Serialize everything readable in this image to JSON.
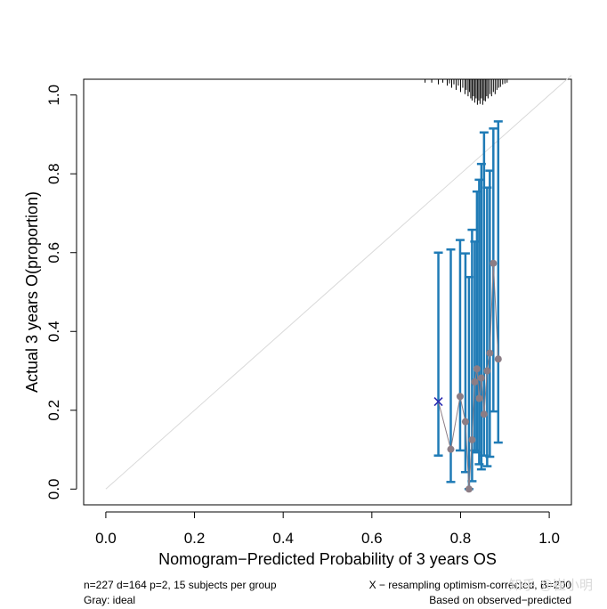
{
  "chart_data": {
    "type": "scatter",
    "title": "",
    "xlabel": "Nomogram−Predicted Probability of 3 years OS",
    "ylabel": "Actual 3 years O(proportion)",
    "xlim": [
      -0.05,
      1.05
    ],
    "ylim": [
      -0.04,
      1.04
    ],
    "x_ticks": [
      0.0,
      0.2,
      0.4,
      0.6,
      0.8,
      1.0
    ],
    "x_tick_labels": [
      "0.0",
      "0.2",
      "0.4",
      "0.6",
      "0.8",
      "1.0"
    ],
    "y_ticks": [
      0.0,
      0.2,
      0.4,
      0.6,
      0.8,
      1.0
    ],
    "y_tick_labels": [
      "0.0",
      "0.2",
      "0.4",
      "0.6",
      "0.8",
      "1.0"
    ],
    "ideal_line": {
      "name": "ideal",
      "color": "#d9d9d9",
      "from": [
        0,
        0
      ],
      "to": [
        1.05,
        1.05
      ]
    },
    "series": [
      {
        "name": "observed",
        "marker": "circle",
        "color": "#8c7d85",
        "line_color": "#8c7d85",
        "points": [
          {
            "x": 0.778,
            "y": 0.101,
            "lo": 0.018,
            "hi": 0.608
          },
          {
            "x": 0.799,
            "y": 0.235,
            "lo": 0.098,
            "hi": 0.632
          },
          {
            "x": 0.811,
            "y": 0.171,
            "lo": 0.043,
            "hi": 0.598
          },
          {
            "x": 0.819,
            "y": 0.0,
            "lo": 0.0,
            "hi": 0.538
          },
          {
            "x": 0.826,
            "y": 0.125,
            "lo": 0.02,
            "hi": 0.658
          },
          {
            "x": 0.832,
            "y": 0.272,
            "lo": 0.098,
            "hi": 0.628
          },
          {
            "x": 0.837,
            "y": 0.305,
            "lo": 0.093,
            "hi": 0.755
          },
          {
            "x": 0.842,
            "y": 0.23,
            "lo": 0.063,
            "hi": 0.785
          },
          {
            "x": 0.847,
            "y": 0.282,
            "lo": 0.05,
            "hi": 0.825
          },
          {
            "x": 0.853,
            "y": 0.19,
            "lo": 0.085,
            "hi": 0.905
          },
          {
            "x": 0.86,
            "y": 0.3,
            "lo": 0.058,
            "hi": 0.765
          },
          {
            "x": 0.866,
            "y": 0.345,
            "lo": 0.082,
            "hi": 0.808
          },
          {
            "x": 0.874,
            "y": 0.573,
            "lo": 0.197,
            "hi": 0.915
          },
          {
            "x": 0.885,
            "y": 0.33,
            "lo": 0.118,
            "hi": 0.933
          }
        ]
      },
      {
        "name": "optimism-corrected",
        "marker": "x",
        "color": "#2b2bb0",
        "points": [
          {
            "x": 0.75,
            "y": 0.222,
            "lo": 0.085,
            "hi": 0.6
          }
        ]
      }
    ],
    "errorbar_color": "#1f7bb6",
    "rug": {
      "color": "#000000",
      "x": [
        0.72,
        0.735,
        0.75,
        0.76,
        0.77,
        0.775,
        0.78,
        0.785,
        0.79,
        0.795,
        0.8,
        0.805,
        0.81,
        0.813,
        0.817,
        0.82,
        0.823,
        0.826,
        0.829,
        0.832,
        0.835,
        0.838,
        0.841,
        0.844,
        0.847,
        0.85,
        0.853,
        0.856,
        0.859,
        0.862,
        0.866,
        0.87,
        0.874,
        0.878,
        0.882,
        0.886,
        0.89,
        0.895,
        0.9,
        0.905
      ],
      "len": [
        0.008,
        0.008,
        0.012,
        0.008,
        0.015,
        0.01,
        0.02,
        0.012,
        0.025,
        0.015,
        0.03,
        0.02,
        0.035,
        0.025,
        0.04,
        0.03,
        0.045,
        0.05,
        0.04,
        0.055,
        0.045,
        0.06,
        0.05,
        0.058,
        0.045,
        0.06,
        0.05,
        0.052,
        0.04,
        0.045,
        0.035,
        0.04,
        0.03,
        0.035,
        0.025,
        0.02,
        0.018,
        0.012,
        0.01,
        0.008
      ]
    }
  },
  "footer": {
    "left_line1": "n=227 d=164 p=2, 15 subjects per group",
    "left_line2": "Gray: ideal",
    "right_line1": "X − resampling optimism-corrected, B=200",
    "right_line2": "Based on observed−predicted",
    "watermark": "知乎 @崔小明"
  }
}
